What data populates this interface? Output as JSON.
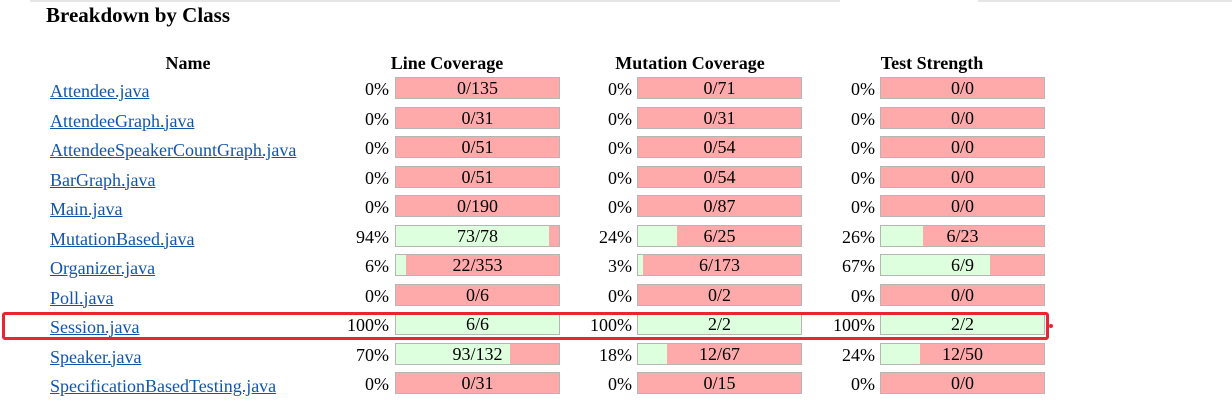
{
  "section_title": "Breakdown by Class",
  "headers": {
    "name": "Name",
    "line_coverage": "Line Coverage",
    "mutation_coverage": "Mutation Coverage",
    "test_strength": "Test Strength"
  },
  "colors": {
    "covered": "#ddffdd",
    "uncovered": "#ffaaaa",
    "link": "#1155aa",
    "highlight": "#e8262e"
  },
  "highlighted_row": "Session.java",
  "rows": [
    {
      "name": "Attendee.java",
      "line_pct": "0%",
      "line_frac": "0/135",
      "line_ratio": 0,
      "mut_pct": "0%",
      "mut_frac": "0/71",
      "mut_ratio": 0,
      "str_pct": "0%",
      "str_frac": "0/0",
      "str_ratio": 0
    },
    {
      "name": "AttendeeGraph.java",
      "line_pct": "0%",
      "line_frac": "0/31",
      "line_ratio": 0,
      "mut_pct": "0%",
      "mut_frac": "0/31",
      "mut_ratio": 0,
      "str_pct": "0%",
      "str_frac": "0/0",
      "str_ratio": 0
    },
    {
      "name": "AttendeeSpeakerCountGraph.java",
      "line_pct": "0%",
      "line_frac": "0/51",
      "line_ratio": 0,
      "mut_pct": "0%",
      "mut_frac": "0/54",
      "mut_ratio": 0,
      "str_pct": "0%",
      "str_frac": "0/0",
      "str_ratio": 0
    },
    {
      "name": "BarGraph.java",
      "line_pct": "0%",
      "line_frac": "0/51",
      "line_ratio": 0,
      "mut_pct": "0%",
      "mut_frac": "0/54",
      "mut_ratio": 0,
      "str_pct": "0%",
      "str_frac": "0/0",
      "str_ratio": 0
    },
    {
      "name": "Main.java",
      "line_pct": "0%",
      "line_frac": "0/190",
      "line_ratio": 0,
      "mut_pct": "0%",
      "mut_frac": "0/87",
      "mut_ratio": 0,
      "str_pct": "0%",
      "str_frac": "0/0",
      "str_ratio": 0
    },
    {
      "name": "MutationBased.java",
      "line_pct": "94%",
      "line_frac": "73/78",
      "line_ratio": 0.94,
      "mut_pct": "24%",
      "mut_frac": "6/25",
      "mut_ratio": 0.24,
      "str_pct": "26%",
      "str_frac": "6/23",
      "str_ratio": 0.26
    },
    {
      "name": "Organizer.java",
      "line_pct": "6%",
      "line_frac": "22/353",
      "line_ratio": 0.06,
      "mut_pct": "3%",
      "mut_frac": "6/173",
      "mut_ratio": 0.03,
      "str_pct": "67%",
      "str_frac": "6/9",
      "str_ratio": 0.67
    },
    {
      "name": "Poll.java",
      "line_pct": "0%",
      "line_frac": "0/6",
      "line_ratio": 0,
      "mut_pct": "0%",
      "mut_frac": "0/2",
      "mut_ratio": 0,
      "str_pct": "0%",
      "str_frac": "0/0",
      "str_ratio": 0
    },
    {
      "name": "Session.java",
      "line_pct": "100%",
      "line_frac": "6/6",
      "line_ratio": 1,
      "mut_pct": "100%",
      "mut_frac": "2/2",
      "mut_ratio": 1,
      "str_pct": "100%",
      "str_frac": "2/2",
      "str_ratio": 1
    },
    {
      "name": "Speaker.java",
      "line_pct": "70%",
      "line_frac": "93/132",
      "line_ratio": 0.7,
      "mut_pct": "18%",
      "mut_frac": "12/67",
      "mut_ratio": 0.18,
      "str_pct": "24%",
      "str_frac": "12/50",
      "str_ratio": 0.24
    },
    {
      "name": "SpecificationBasedTesting.java",
      "line_pct": "0%",
      "line_frac": "0/31",
      "line_ratio": 0,
      "mut_pct": "0%",
      "mut_frac": "0/15",
      "mut_ratio": 0,
      "str_pct": "0%",
      "str_frac": "0/0",
      "str_ratio": 0
    }
  ]
}
